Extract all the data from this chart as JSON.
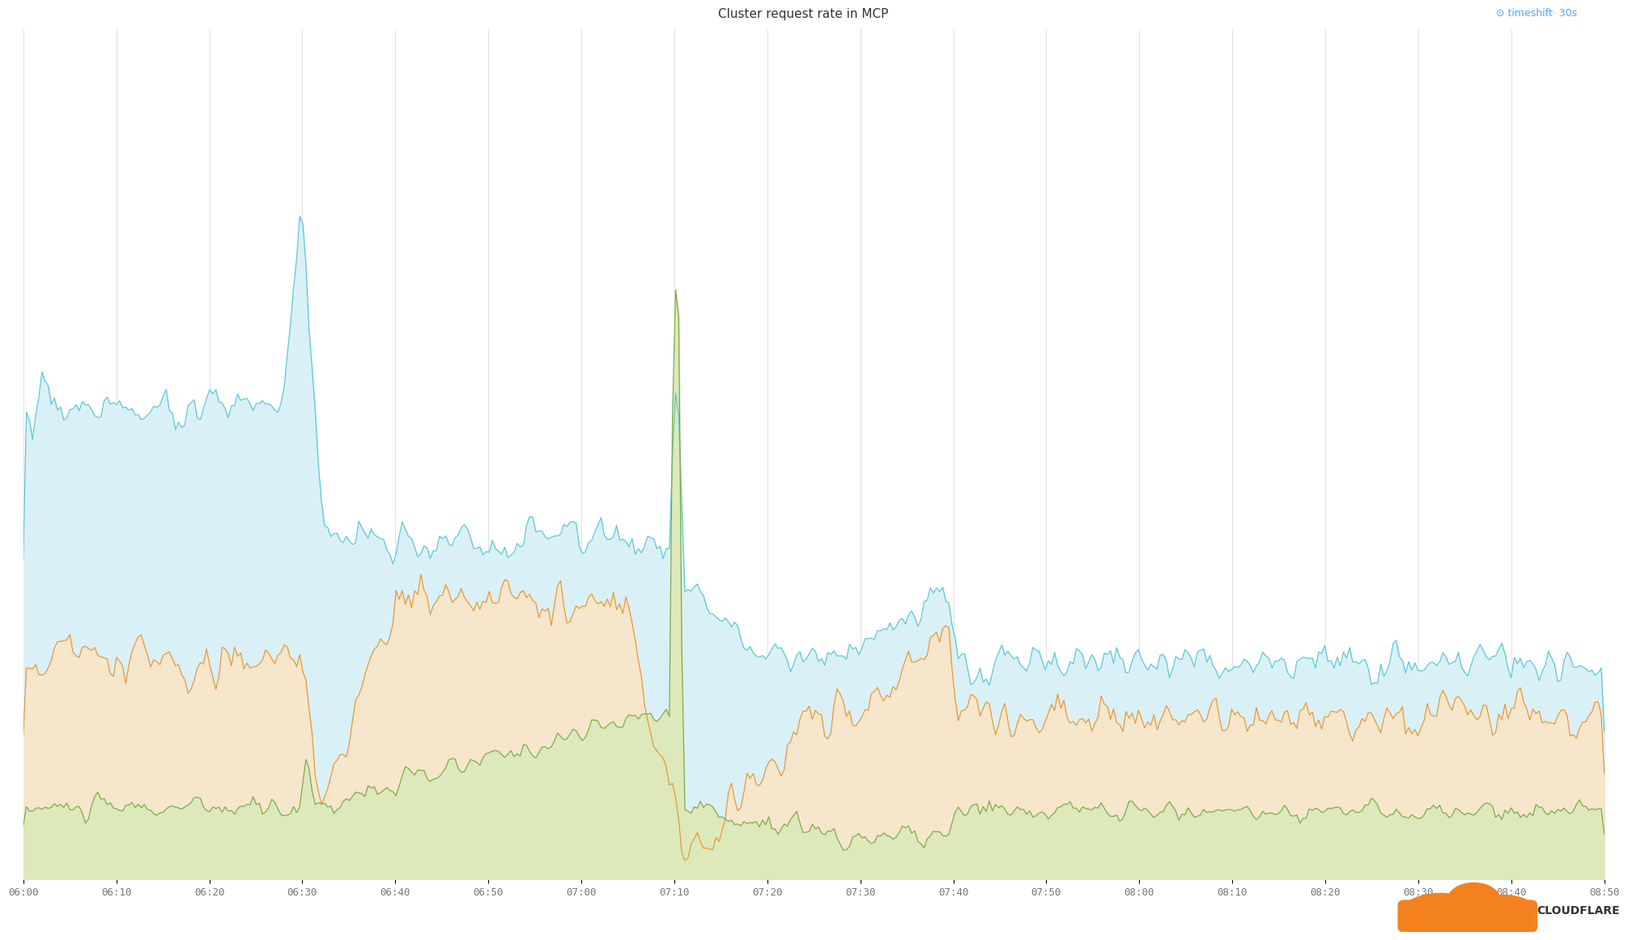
{
  "title": "Cluster request rate in MCP",
  "annotation": "⊙ timeshift· 30s",
  "annotation_color": "#4da6ff",
  "x_labels": [
    "06:00",
    "06:10",
    "06:20",
    "06:30",
    "06:40",
    "06:50",
    "07:00",
    "07:10",
    "07:20",
    "07:30",
    "07:40",
    "07:50",
    "08:00",
    "08:10",
    "08:20",
    "08:30",
    "08:40",
    "08:50"
  ],
  "background_color": "#ffffff",
  "grid_color": "#e0e0e0",
  "cyan_color": "#56c8d8",
  "cyan_fill": "#daf0f7",
  "orange_color": "#e8962e",
  "orange_fill": "#f5e6cc",
  "green_color": "#7aaa44",
  "green_fill": "#dde8bb",
  "seed": 7
}
